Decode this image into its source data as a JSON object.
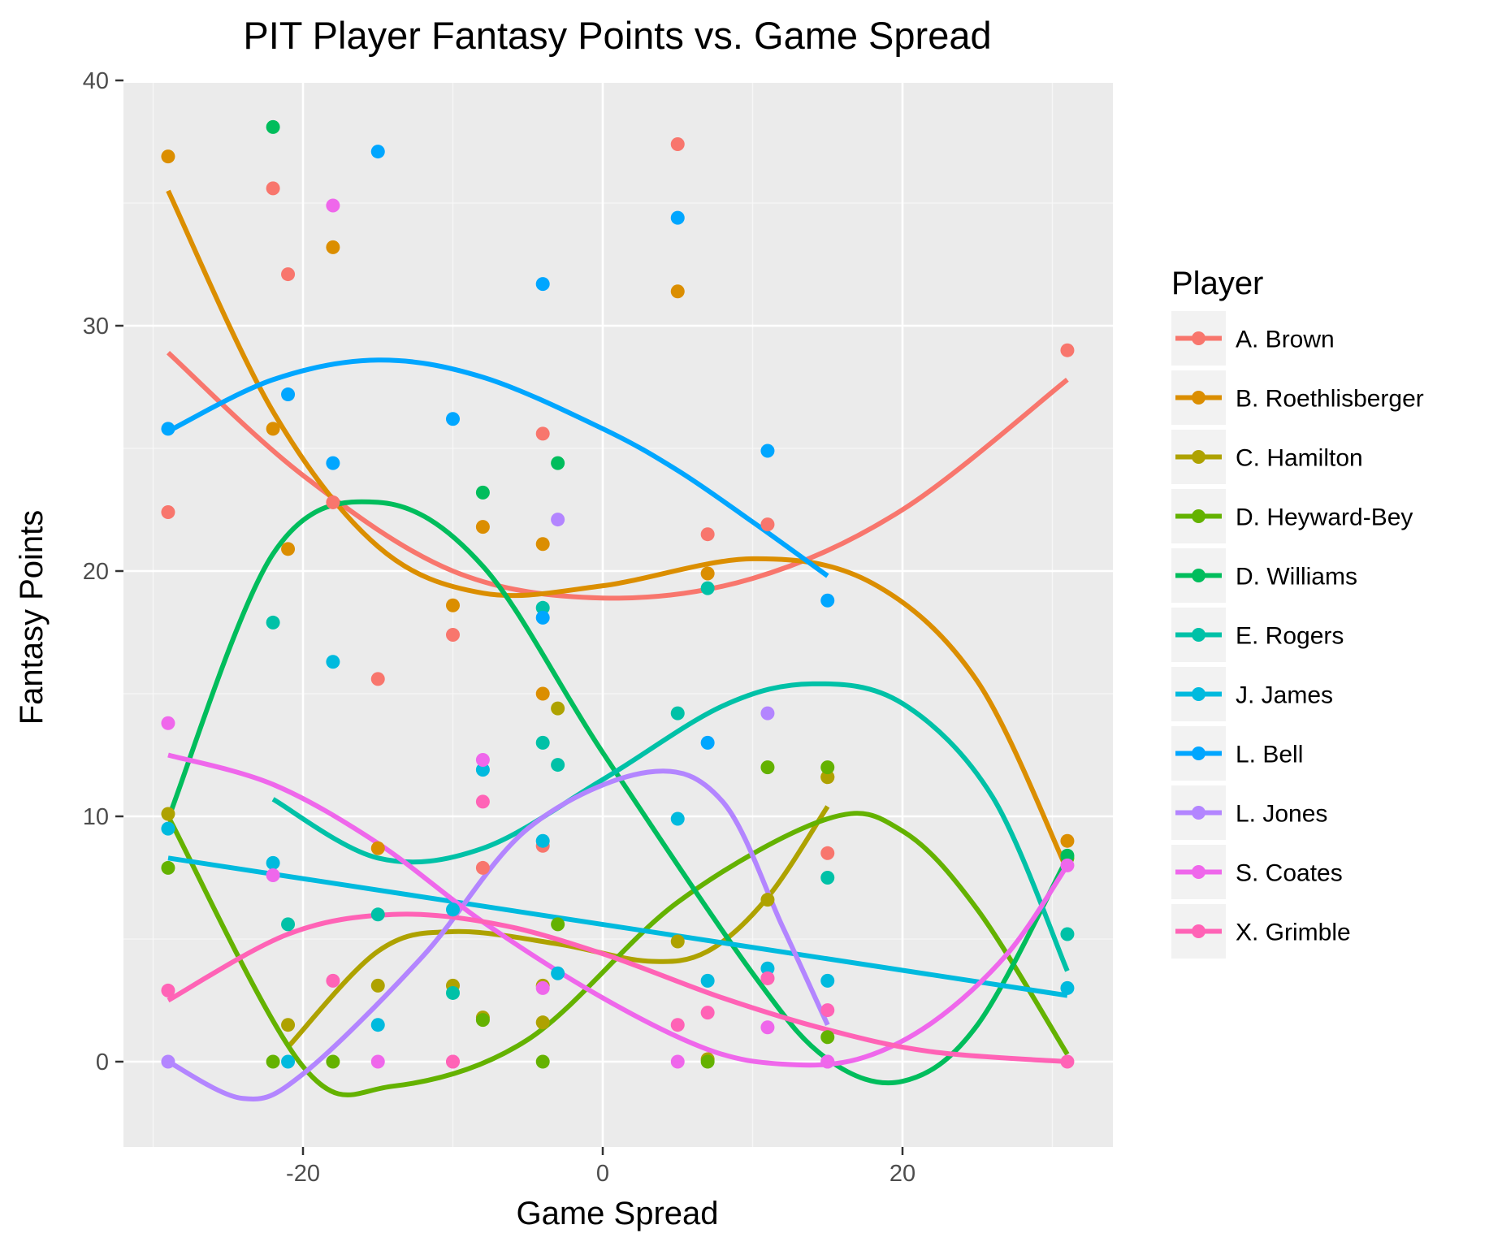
{
  "chart_data": {
    "type": "scatter",
    "title": "PIT Player Fantasy Points vs. Game Spread",
    "xlabel": "Game Spread",
    "ylabel": "Fantasy Points",
    "xlim": [
      -30.5,
      34
    ],
    "ylim": [
      -3.5,
      40.5
    ],
    "x_ticks": [
      -20,
      0,
      20
    ],
    "x_tick_labels": [
      "-20",
      "0",
      "20"
    ],
    "y_ticks": [
      0,
      10,
      20,
      30,
      40
    ],
    "y_tick_labels": [
      "0",
      "10",
      "20",
      "30",
      "40"
    ],
    "grid": true,
    "legend_position": "right",
    "legend_title": "Player",
    "series": [
      {
        "name": "A. Brown",
        "color": "#F8766D",
        "points": [
          [
            -29,
            22.4
          ],
          [
            -22,
            35.6
          ],
          [
            -21,
            32.1
          ],
          [
            -18,
            22.8
          ],
          [
            -15,
            15.6
          ],
          [
            -10,
            17.4
          ],
          [
            -8,
            7.9
          ],
          [
            -4,
            25.6
          ],
          [
            -4,
            8.8
          ],
          [
            5,
            37.4
          ],
          [
            7,
            21.5
          ],
          [
            11,
            21.9
          ],
          [
            11,
            3.4
          ],
          [
            15,
            8.5
          ],
          [
            31,
            29.0
          ]
        ],
        "curve": [
          [
            -29,
            28.9
          ],
          [
            -20,
            23.9
          ],
          [
            -10,
            20.0
          ],
          [
            0,
            18.9
          ],
          [
            10,
            19.7
          ],
          [
            20,
            22.5
          ],
          [
            31,
            27.8
          ]
        ]
      },
      {
        "name": "B. Roethlisberger",
        "color": "#DB8E00",
        "points": [
          [
            -29,
            36.9
          ],
          [
            -22,
            25.8
          ],
          [
            -21,
            20.9
          ],
          [
            -18,
            33.2
          ],
          [
            -15,
            8.7
          ],
          [
            -10,
            18.6
          ],
          [
            -8,
            21.8
          ],
          [
            -4,
            21.1
          ],
          [
            -4,
            15.0
          ],
          [
            5,
            31.4
          ],
          [
            7,
            19.9
          ],
          [
            15,
            11.6
          ],
          [
            31,
            9.0
          ]
        ],
        "curve": [
          [
            -29,
            35.5
          ],
          [
            -22,
            26.5
          ],
          [
            -15,
            21.0
          ],
          [
            -8,
            19.1
          ],
          [
            0,
            19.4
          ],
          [
            10,
            20.5
          ],
          [
            18,
            19.5
          ],
          [
            25,
            15.5
          ],
          [
            31,
            7.8
          ]
        ]
      },
      {
        "name": "C. Hamilton",
        "color": "#AEA200",
        "points": [
          [
            -29,
            10.1
          ],
          [
            -21,
            1.5
          ],
          [
            -15,
            3.1
          ],
          [
            -10,
            3.1
          ],
          [
            -8,
            1.8
          ],
          [
            -4,
            3.1
          ],
          [
            -4,
            1.6
          ],
          [
            -3,
            14.4
          ],
          [
            5,
            4.9
          ],
          [
            7,
            0.1
          ],
          [
            11,
            6.6
          ],
          [
            15,
            11.6
          ]
        ],
        "curve": [
          [
            -21,
            0.6
          ],
          [
            -15,
            4.5
          ],
          [
            -10,
            5.3
          ],
          [
            -3,
            4.8
          ],
          [
            3,
            4.1
          ],
          [
            7,
            4.5
          ],
          [
            11,
            6.7
          ],
          [
            15,
            10.4
          ]
        ]
      },
      {
        "name": "D. Heyward-Bey",
        "color": "#64B200",
        "points": [
          [
            -29,
            7.9
          ],
          [
            -22,
            0.0
          ],
          [
            -18,
            0.0
          ],
          [
            -8,
            1.7
          ],
          [
            -4,
            0.0
          ],
          [
            -3,
            5.6
          ],
          [
            7,
            0.0
          ],
          [
            11,
            12.0
          ],
          [
            15,
            12.0
          ],
          [
            15,
            1.0
          ],
          [
            31,
            8.3
          ]
        ],
        "curve": [
          [
            -29,
            10.0
          ],
          [
            -20,
            -0.2
          ],
          [
            -14,
            -1.0
          ],
          [
            -5,
            0.9
          ],
          [
            5,
            6.5
          ],
          [
            15,
            9.9
          ],
          [
            20,
            9.4
          ],
          [
            25,
            6.2
          ],
          [
            31,
            0.3
          ]
        ]
      },
      {
        "name": "D. Williams",
        "color": "#00BD5C",
        "points": [
          [
            -22,
            38.1
          ],
          [
            -8,
            23.2
          ],
          [
            -3,
            24.4
          ],
          [
            31,
            8.4
          ]
        ],
        "curve": [
          [
            -29,
            9.9
          ],
          [
            -22,
            20.7
          ],
          [
            -15,
            22.8
          ],
          [
            -8,
            20.2
          ],
          [
            0,
            12.6
          ],
          [
            10,
            3.6
          ],
          [
            15,
            0.1
          ],
          [
            20,
            -0.8
          ],
          [
            25,
            1.5
          ],
          [
            31,
            8.3
          ]
        ]
      },
      {
        "name": "E. Rogers",
        "color": "#00C1A7",
        "points": [
          [
            -22,
            17.9
          ],
          [
            -21,
            5.6
          ],
          [
            -15,
            6.0
          ],
          [
            -10,
            2.8
          ],
          [
            -4,
            13.0
          ],
          [
            -4,
            18.5
          ],
          [
            -3,
            12.1
          ],
          [
            5,
            14.2
          ],
          [
            7,
            19.3
          ],
          [
            15,
            7.5
          ],
          [
            31,
            5.2
          ]
        ],
        "curve": [
          [
            -22,
            10.7
          ],
          [
            -15,
            8.3
          ],
          [
            -8,
            8.7
          ],
          [
            0,
            11.5
          ],
          [
            8,
            14.5
          ],
          [
            14,
            15.4
          ],
          [
            20,
            14.6
          ],
          [
            26,
            10.8
          ],
          [
            31,
            3.7
          ]
        ]
      },
      {
        "name": "J. James",
        "color": "#00BADE",
        "points": [
          [
            -29,
            9.5
          ],
          [
            -22,
            8.1
          ],
          [
            -21,
            0.0
          ],
          [
            -18,
            16.3
          ],
          [
            -15,
            1.5
          ],
          [
            -10,
            6.2
          ],
          [
            -8,
            11.9
          ],
          [
            -4,
            9.0
          ],
          [
            -3,
            3.6
          ],
          [
            5,
            9.9
          ],
          [
            7,
            3.3
          ],
          [
            11,
            3.8
          ],
          [
            15,
            3.3
          ],
          [
            31,
            3.0
          ]
        ],
        "curve": [
          [
            -29,
            8.3
          ],
          [
            31,
            2.7
          ]
        ]
      },
      {
        "name": "L. Bell",
        "color": "#00A6FF",
        "points": [
          [
            -29,
            25.8
          ],
          [
            -21,
            27.2
          ],
          [
            -18,
            24.4
          ],
          [
            -15,
            37.1
          ],
          [
            -10,
            26.2
          ],
          [
            -4,
            31.7
          ],
          [
            -4,
            18.1
          ],
          [
            5,
            34.4
          ],
          [
            7,
            13.0
          ],
          [
            11,
            24.9
          ],
          [
            15,
            18.8
          ]
        ],
        "curve": [
          [
            -29,
            25.7
          ],
          [
            -22,
            27.8
          ],
          [
            -15,
            28.6
          ],
          [
            -8,
            27.9
          ],
          [
            0,
            25.8
          ],
          [
            5,
            24.1
          ],
          [
            10,
            22.0
          ],
          [
            15,
            19.8
          ]
        ]
      },
      {
        "name": "L. Jones",
        "color": "#B385FF",
        "points": [
          [
            -29,
            0.0
          ],
          [
            -3,
            22.1
          ],
          [
            11,
            14.2
          ],
          [
            15,
            0.0
          ]
        ],
        "curve": [
          [
            -29,
            0.0
          ],
          [
            -24,
            -1.5
          ],
          [
            -20,
            -0.5
          ],
          [
            -12,
            4.3
          ],
          [
            -5,
            9.5
          ],
          [
            3,
            11.8
          ],
          [
            8,
            10.6
          ],
          [
            12,
            5.5
          ],
          [
            15,
            1.5
          ]
        ]
      },
      {
        "name": "S. Coates",
        "color": "#EF67EB",
        "points": [
          [
            -29,
            13.8
          ],
          [
            -22,
            7.6
          ],
          [
            -18,
            34.9
          ],
          [
            -15,
            0.0
          ],
          [
            -10,
            0.0
          ],
          [
            -8,
            12.3
          ],
          [
            -4,
            3.0
          ],
          [
            5,
            0.0
          ],
          [
            11,
            1.4
          ],
          [
            15,
            0.0
          ],
          [
            31,
            8.0
          ]
        ],
        "curve": [
          [
            -29,
            12.5
          ],
          [
            -22,
            11.3
          ],
          [
            -15,
            8.9
          ],
          [
            -8,
            5.7
          ],
          [
            0,
            2.6
          ],
          [
            7,
            0.5
          ],
          [
            12,
            -0.1
          ],
          [
            17,
            0.1
          ],
          [
            22,
            1.6
          ],
          [
            27,
            4.4
          ],
          [
            31,
            8.0
          ]
        ]
      },
      {
        "name": "X. Grimble",
        "color": "#FF63B6",
        "points": [
          [
            -29,
            2.9
          ],
          [
            -18,
            3.3
          ],
          [
            -10,
            0.0
          ],
          [
            -8,
            10.6
          ],
          [
            5,
            1.5
          ],
          [
            7,
            2.0
          ],
          [
            11,
            3.4
          ],
          [
            15,
            2.1
          ],
          [
            31,
            0.0
          ]
        ],
        "curve": [
          [
            -29,
            2.5
          ],
          [
            -21,
            5.2
          ],
          [
            -14,
            6.0
          ],
          [
            -7,
            5.6
          ],
          [
            0,
            4.4
          ],
          [
            8,
            2.6
          ],
          [
            15,
            1.3
          ],
          [
            22,
            0.4
          ],
          [
            31,
            0.0
          ]
        ]
      }
    ]
  }
}
